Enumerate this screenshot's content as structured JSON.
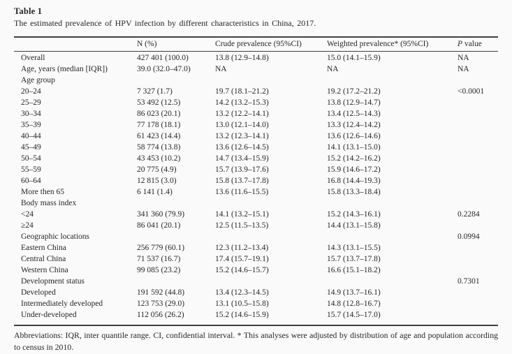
{
  "page": {
    "background": "#fafafa",
    "text_color": "#262626",
    "rule_color": "#404040"
  },
  "table": {
    "label": "Table 1",
    "caption": "The estimated prevalence of HPV infection by different characteristics in China, 2017.",
    "columns": {
      "characteristic": "",
      "n": "N (%)",
      "crude": "Crude prevalence (95%CI)",
      "weighted": "Weighted prevalence* (95%CI)",
      "p": "P value"
    },
    "rows": [
      {
        "label": "Overall",
        "n": "427 401 (100.0)",
        "crude": "13.8 (12.9–14.8)",
        "weighted": "15.0 (14.1–15.9)",
        "p": "NA"
      },
      {
        "label": "Age, years (median [IQR])",
        "n": "39.0 (32.0–47.0)",
        "crude": "NA",
        "weighted": "NA",
        "p": "NA"
      },
      {
        "label": "Age group",
        "n": "",
        "crude": "",
        "weighted": "",
        "p": ""
      },
      {
        "label": "20–24",
        "n": "7 327 (1.7)",
        "crude": "19.7 (18.1–21.2)",
        "weighted": "19.2 (17.2–21.2)",
        "p": "<0.0001"
      },
      {
        "label": "25–29",
        "n": "53 492 (12.5)",
        "crude": "14.2 (13.2–15.3)",
        "weighted": "13.8 (12.9–14.7)",
        "p": ""
      },
      {
        "label": "30–34",
        "n": "86 023 (20.1)",
        "crude": "13.2 (12.2–14.1)",
        "weighted": "13.4 (12.5–14.3)",
        "p": ""
      },
      {
        "label": "35–39",
        "n": "77 178 (18.1)",
        "crude": "13.0 (12.1–14.0)",
        "weighted": "13.3 (12.4–14.2)",
        "p": ""
      },
      {
        "label": "40–44",
        "n": "61 423 (14.4)",
        "crude": "13.2 (12.3–14.1)",
        "weighted": "13.6 (12.6–14.6)",
        "p": ""
      },
      {
        "label": "45–49",
        "n": "58 774 (13.8)",
        "crude": "13.6 (12.6–14.5)",
        "weighted": "14.1 (13.1–15.0)",
        "p": ""
      },
      {
        "label": "50–54",
        "n": "43 453 (10.2)",
        "crude": "14.7 (13.4–15.9)",
        "weighted": "15.2 (14.2–16.2)",
        "p": ""
      },
      {
        "label": "55–59",
        "n": "20 775 (4.9)",
        "crude": "15.7 (13.9–17.6)",
        "weighted": "15.9 (14.6–17.2)",
        "p": ""
      },
      {
        "label": "60–64",
        "n": "12 815 (3.0)",
        "crude": "15.8 (13.7–17.8)",
        "weighted": "16.8 (14.4–19.3)",
        "p": ""
      },
      {
        "label": "More then 65",
        "n": "6 141 (1.4)",
        "crude": "13.6 (11.6–15.5)",
        "weighted": "15.8 (13.3–18.4)",
        "p": ""
      },
      {
        "label": "Body mass index",
        "n": "",
        "crude": "",
        "weighted": "",
        "p": ""
      },
      {
        "label": "<24",
        "n": "341 360 (79.9)",
        "crude": "14.1 (13.2–15.1)",
        "weighted": "15.2 (14.3–16.1)",
        "p": "0.2284"
      },
      {
        "label": "≥24",
        "n": "86 041 (20.1)",
        "crude": "12.5 (11.5–13.5)",
        "weighted": "14.4 (13.1–15.8)",
        "p": ""
      },
      {
        "label": "Geographic locations",
        "n": "",
        "crude": "",
        "weighted": "",
        "p": "0.0994"
      },
      {
        "label": "Eastern China",
        "n": "256 779 (60.1)",
        "crude": "12.3 (11.2–13.4)",
        "weighted": "14.3 (13.1–15.5)",
        "p": ""
      },
      {
        "label": "Central China",
        "n": "71 537 (16.7)",
        "crude": "17.4 (15.7–19.1)",
        "weighted": "15.7 (13.7–17.8)",
        "p": ""
      },
      {
        "label": "Western China",
        "n": "99 085 (23.2)",
        "crude": "15.2 (14.6–15.7)",
        "weighted": "16.6 (15.1–18.2)",
        "p": ""
      },
      {
        "label": "Development status",
        "n": "",
        "crude": "",
        "weighted": "",
        "p": "0.7301"
      },
      {
        "label": "Developed",
        "n": "191 592 (44.8)",
        "crude": "13.4 (12.3–14.5)",
        "weighted": "14.9 (13.7–16.1)",
        "p": ""
      },
      {
        "label": "Intermediately developed",
        "n": "123 753 (29.0)",
        "crude": "13.1 (10.5–15.8)",
        "weighted": "14.8 (12.8–16.7)",
        "p": ""
      },
      {
        "label": "Under-developed",
        "n": "112 056 (26.2)",
        "crude": "15.2 (14.6–15.9)",
        "weighted": "15.7 (14.5–17.0)",
        "p": ""
      }
    ],
    "footnote": "Abbreviations: IQR, inter quantile range. CI, confidential interval. * This analyses were adjusted by distribution of age and population according to census in 2010."
  }
}
